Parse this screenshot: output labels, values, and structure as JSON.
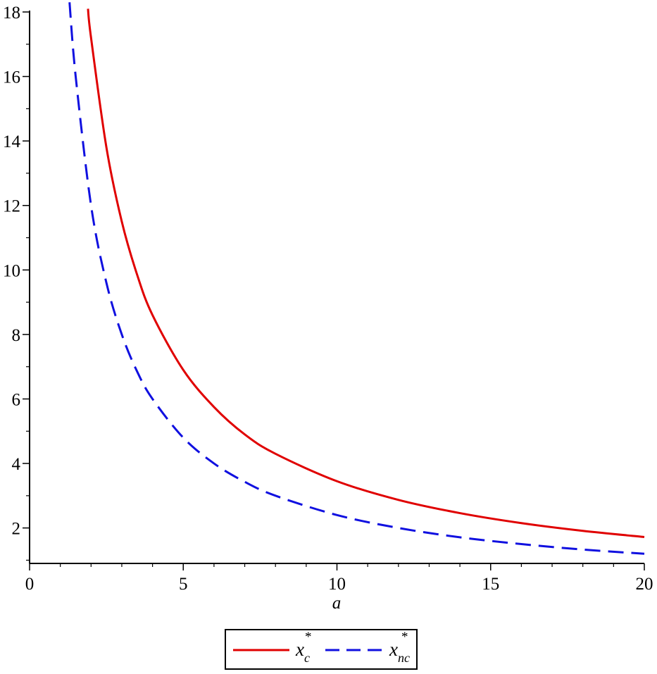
{
  "chart_data": {
    "type": "line",
    "title": "",
    "xlabel": "a",
    "ylabel": "",
    "xlim": [
      0,
      20
    ],
    "ylim": [
      0.9,
      18
    ],
    "x_ticks": [
      0,
      5,
      10,
      15,
      20
    ],
    "x_tick_labels": [
      "0",
      "5",
      "10",
      "15",
      "20"
    ],
    "y_ticks": [
      2,
      4,
      6,
      8,
      10,
      12,
      14,
      16,
      18
    ],
    "y_tick_labels": [
      "2",
      "4",
      "6",
      "8",
      "10",
      "12",
      "14",
      "16",
      "18"
    ],
    "grid": false,
    "legend_placement": "bottom",
    "series": [
      {
        "name": "x_c^*",
        "legend_base": "x",
        "legend_sub": "c",
        "legend_sup": "*",
        "color": "#e00000",
        "dash": "solid",
        "x": [
          1.9,
          2,
          2.5,
          3,
          3.5,
          4,
          5,
          6,
          7,
          8,
          10,
          12,
          14,
          16,
          18,
          20
        ],
        "values": [
          18.1,
          17.2,
          13.8,
          11.5,
          9.85,
          8.6,
          6.9,
          5.75,
          4.9,
          4.3,
          3.45,
          2.87,
          2.46,
          2.15,
          1.91,
          1.72
        ]
      },
      {
        "name": "x_nc^*",
        "legend_base": "x",
        "legend_sub": "nc",
        "legend_sup": "*",
        "color": "#1010e0",
        "dash": "dashed",
        "x": [
          1.3,
          1.5,
          2,
          2.5,
          3,
          3.5,
          4,
          5,
          6,
          7,
          8,
          10,
          12,
          14,
          16,
          18,
          20
        ],
        "values": [
          18.3,
          16.0,
          12.0,
          9.6,
          8.0,
          6.85,
          6.0,
          4.8,
          4.0,
          3.43,
          3.0,
          2.4,
          2.0,
          1.71,
          1.5,
          1.33,
          1.2
        ]
      }
    ]
  }
}
